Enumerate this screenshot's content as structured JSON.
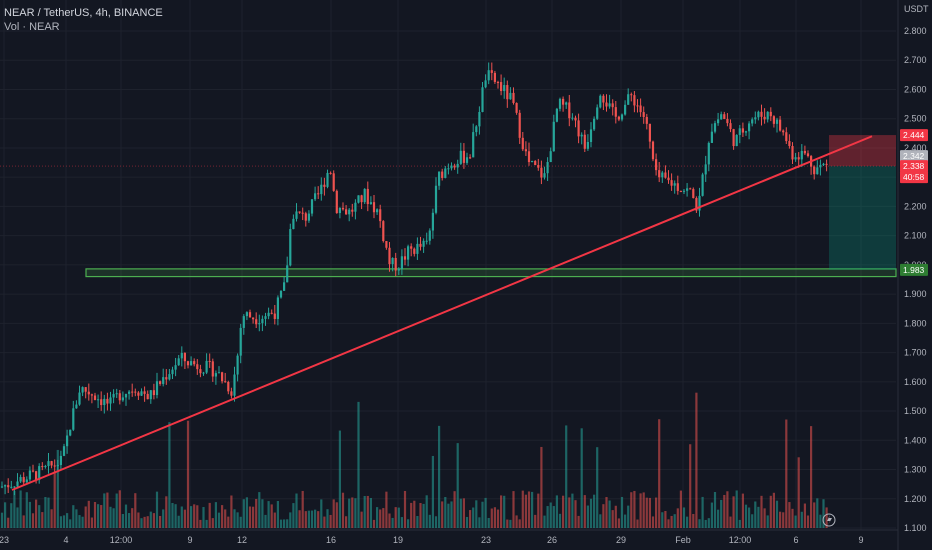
{
  "legend": {
    "symbol_line": "NEAR / TetherUS, 4h, BINANCE",
    "volume_line": "Vol · NEAR"
  },
  "chart_data": {
    "type": "candlestick",
    "title": "NEAR / TetherUS, 4h, BINANCE",
    "currency": "USDT",
    "ylim": [
      1.1,
      2.85
    ],
    "y_ticks": [
      "2.800",
      "2.700",
      "2.600",
      "2.500",
      "2.400",
      "2.300",
      "2.200",
      "2.100",
      "2.000",
      "1.900",
      "1.800",
      "1.700",
      "1.600",
      "1.500",
      "1.400",
      "1.300",
      "1.200",
      "1.100"
    ],
    "x_ticks": [
      "23",
      "4",
      "12:00",
      "9",
      "12",
      "16",
      "19",
      "23",
      "26",
      "29",
      "Feb",
      "12:00",
      "6",
      "9"
    ],
    "grid": true,
    "price_tags": [
      {
        "value": "2.444",
        "color": "#f23645"
      },
      {
        "value": "2.342",
        "color": "#b0b3bb"
      },
      {
        "value": "2.338",
        "color": "#f23645"
      },
      {
        "value": "40:58",
        "color": "#f23645"
      },
      {
        "value": "1.983",
        "color": "#2e7d32"
      }
    ],
    "trendline": {
      "from": {
        "x": "23",
        "y": 1.23
      },
      "to": {
        "x": "9",
        "y": 2.44
      },
      "color": "#f23645"
    },
    "support_zone": {
      "low": 1.96,
      "high": 2.0,
      "label": "1.983",
      "color": "#4caf50"
    },
    "short_position": {
      "entry": 2.338,
      "stop": 2.444,
      "target": 1.983
    },
    "up_color": "#26a69a",
    "down_color": "#ef5350"
  },
  "colors": {
    "background": "#131722",
    "grid": "#1e222d",
    "text": "#b2b5be"
  }
}
